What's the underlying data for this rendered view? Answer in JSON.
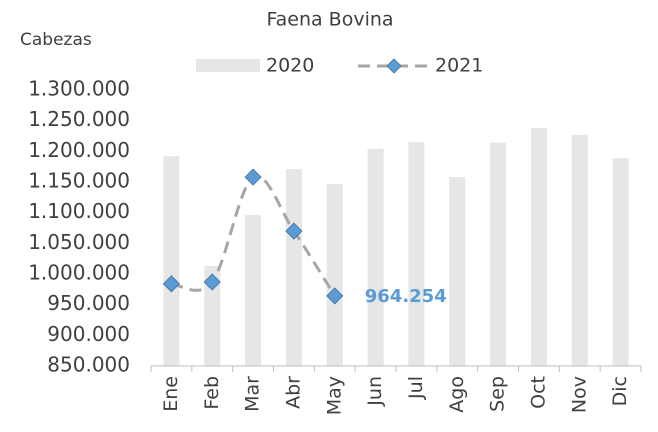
{
  "chart_data": {
    "type": "bar_line",
    "title": "Faena Bovina",
    "y_axis_label": "Cabezas",
    "categories": [
      "Ene",
      "Feb",
      "Mar",
      "Abr",
      "May",
      "Jun",
      "Jul",
      "Ago",
      "Sep",
      "Oct",
      "Nov",
      "Dic"
    ],
    "series": [
      {
        "name": "2020",
        "type": "bar",
        "color": "#e6e6e6",
        "values": [
          1192000,
          1013000,
          1096000,
          1171000,
          1147000,
          1204000,
          1215000,
          1158000,
          1214000,
          1238000,
          1227000,
          1189000
        ]
      },
      {
        "name": "2021",
        "type": "line",
        "color": "#a6a6a6",
        "marker_color": "#5b9bd5",
        "dashed": true,
        "smooth": true,
        "values": [
          984000,
          987000,
          1158000,
          1070000,
          964254,
          null,
          null,
          null,
          null,
          null,
          null,
          null
        ],
        "value_labels": [
          null,
          null,
          null,
          null,
          "964.254",
          null,
          null,
          null,
          null,
          null,
          null,
          null
        ],
        "label_color": "#5b9bd5"
      }
    ],
    "ylim": [
      850000,
      1300000
    ],
    "yticks": [
      {
        "value": 850000,
        "label": "850.000"
      },
      {
        "value": 900000,
        "label": "900.000"
      },
      {
        "value": 950000,
        "label": "950.000"
      },
      {
        "value": 1000000,
        "label": "1.000.000"
      },
      {
        "value": 1050000,
        "label": "1.050.000"
      },
      {
        "value": 1100000,
        "label": "1.100.000"
      },
      {
        "value": 1150000,
        "label": "1.150.000"
      },
      {
        "value": 1200000,
        "label": "1.200.000"
      },
      {
        "value": 1250000,
        "label": "1.250.000"
      },
      {
        "value": 1300000,
        "label": "1.300.000"
      }
    ],
    "grid": false,
    "legend": "top"
  }
}
